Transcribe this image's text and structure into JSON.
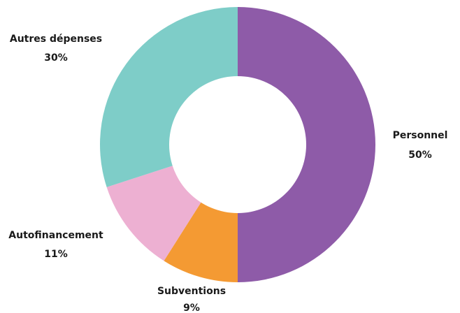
{
  "chart_data": {
    "type": "pie",
    "donut": true,
    "categories": [
      "Personnel",
      "Subventions",
      "Autofinancement",
      "Autres dépenses"
    ],
    "values": [
      50,
      9,
      11,
      30
    ],
    "value_labels": [
      "50%",
      "9%",
      "11%",
      "30%"
    ],
    "colors": [
      "#8e5ba8",
      "#f49a33",
      "#edb0d2",
      "#7ecdc8"
    ],
    "title": "",
    "legend": "none",
    "labels_outside": true
  }
}
